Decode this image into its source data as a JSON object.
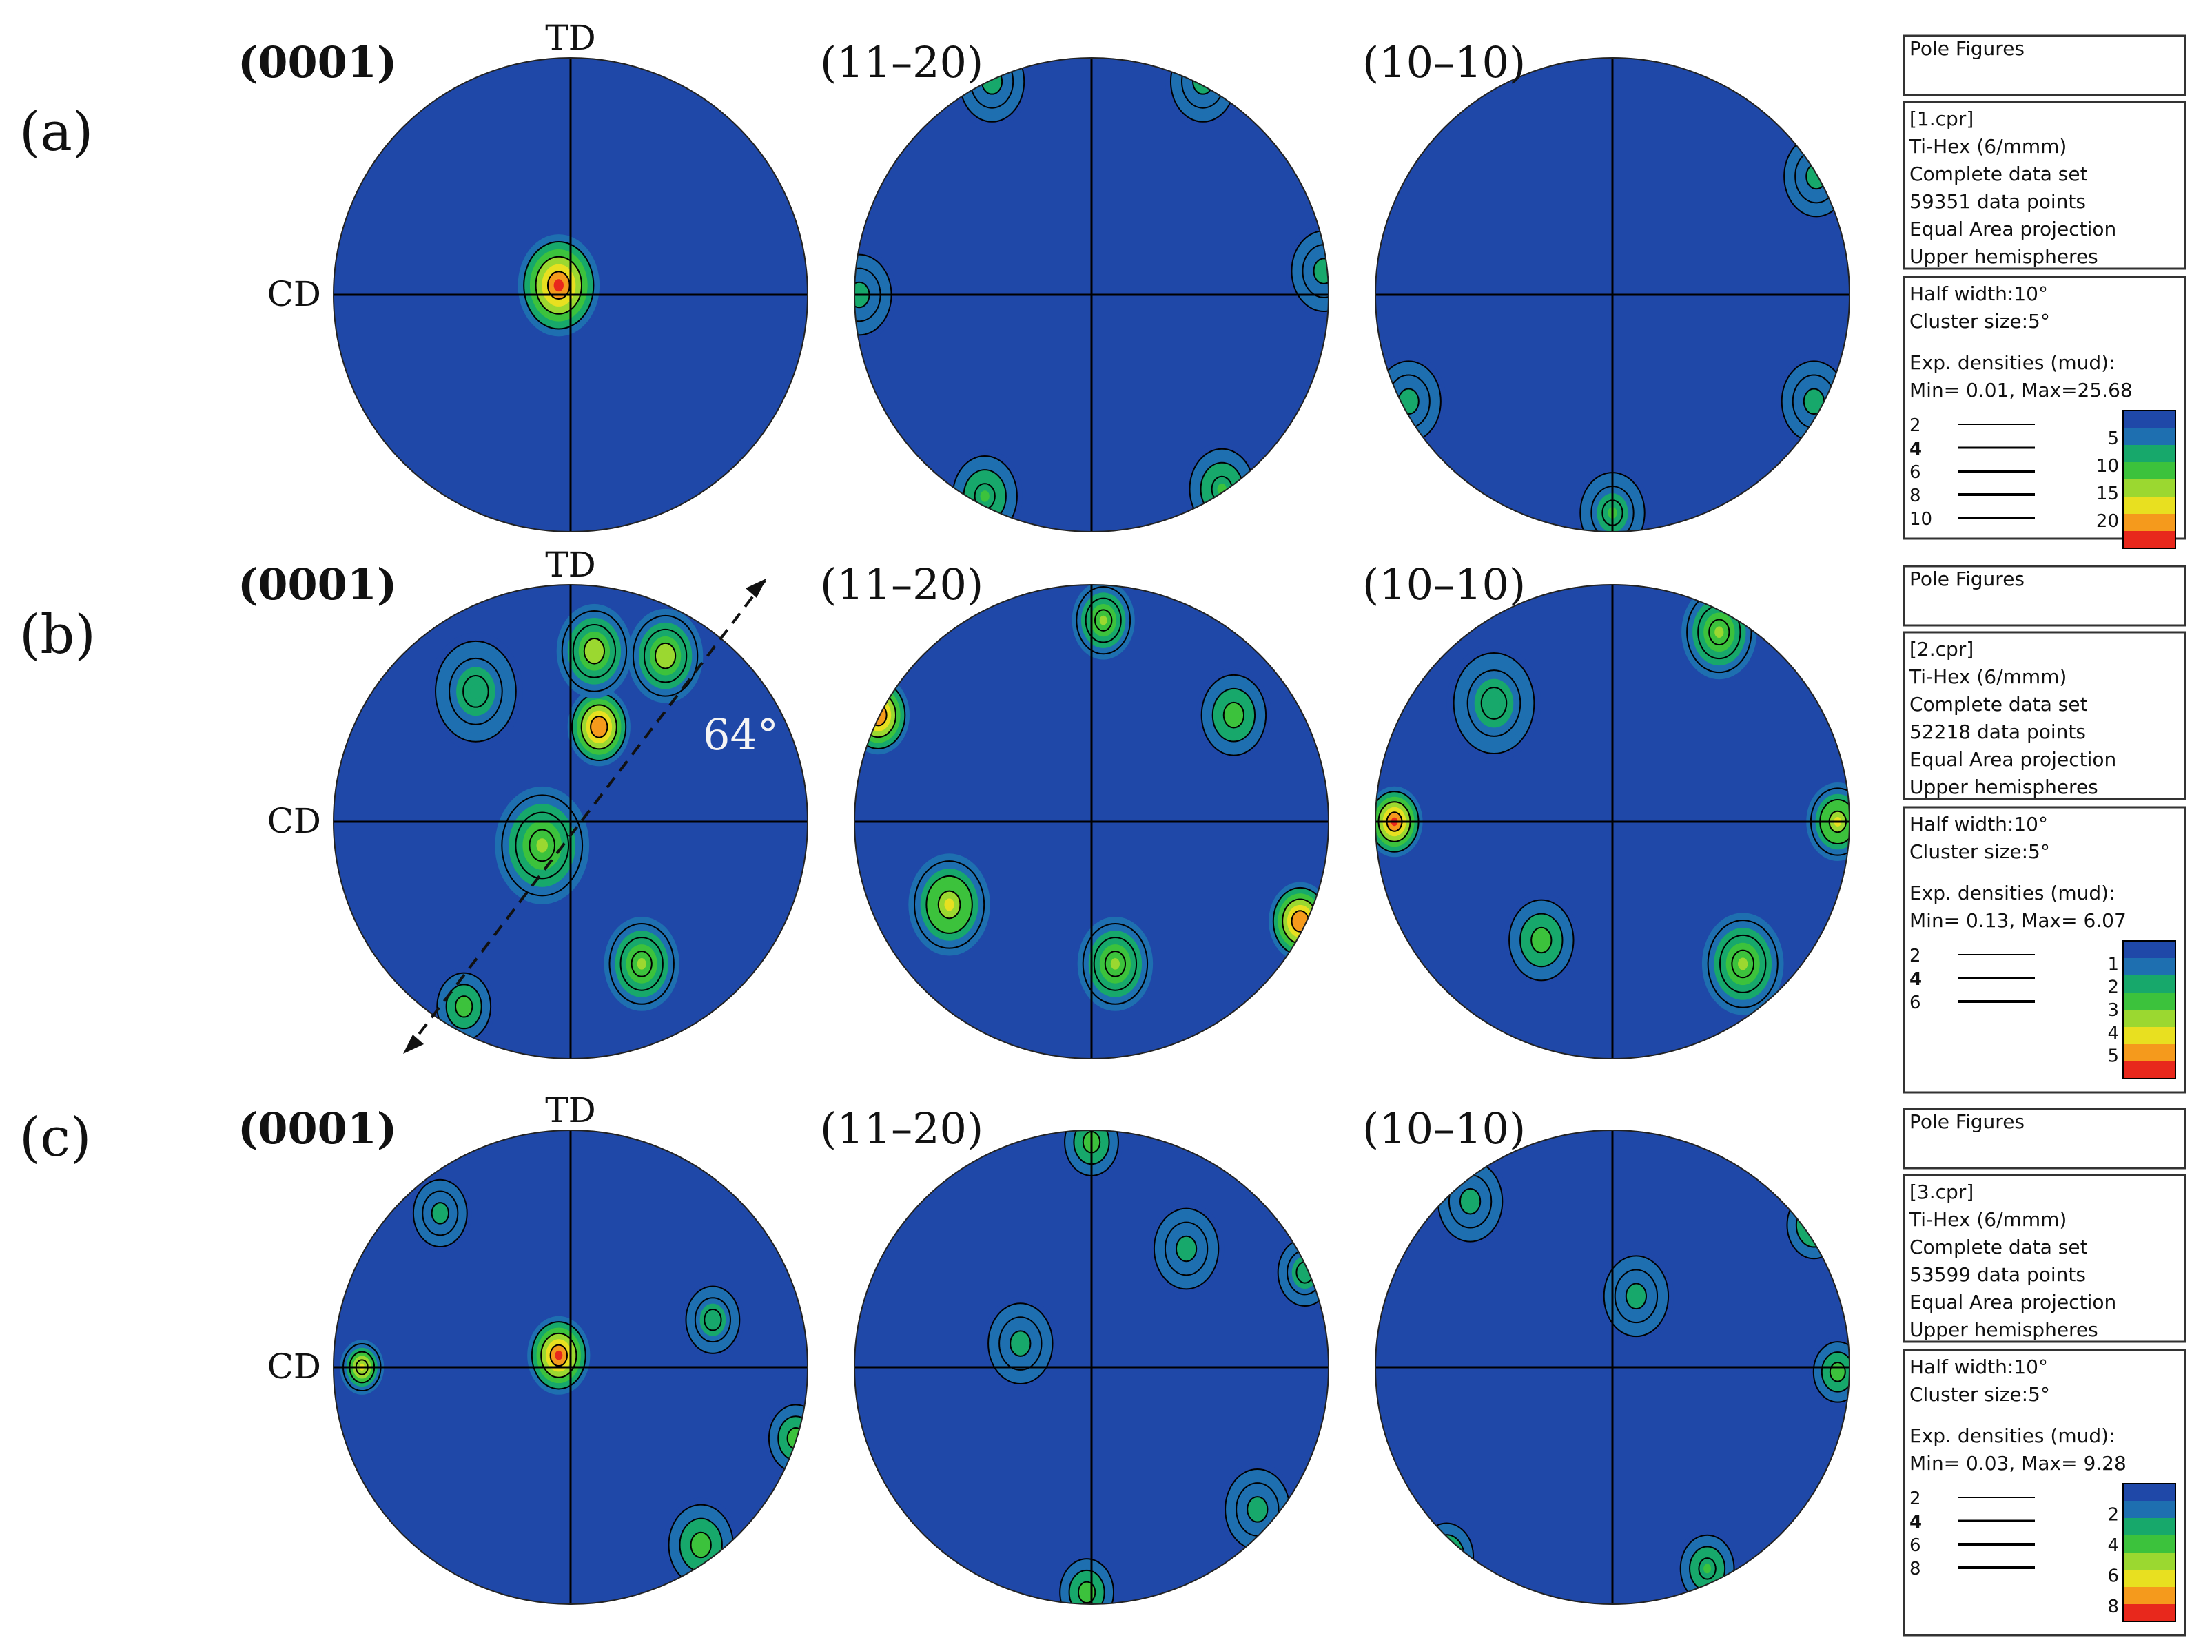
{
  "figure": {
    "axis_labels": {
      "td": "TD",
      "cd": "CD"
    },
    "annotation": {
      "angle_text": "64°"
    },
    "plane_titles": [
      "(0001)",
      "(11–20)",
      "(10–10)"
    ]
  },
  "colors": {
    "background": "#1f48a8",
    "scale": [
      "#1f48a8",
      "#1e6fb0",
      "#17a86b",
      "#3cc23c",
      "#9bd830",
      "#e8e020",
      "#f59a1c",
      "#e8281c"
    ],
    "contour": "#000000",
    "axis": "#000000"
  },
  "chart_data": [
    {
      "type": "heatmap",
      "row_label": "(a)",
      "header": "Pole Figures",
      "info": [
        "[1.cpr]",
        "Ti-Hex (6/mmm)",
        "Complete data set",
        "59351 data points",
        "Equal Area projection",
        "Upper hemispheres"
      ],
      "settings": [
        "Half width:10°",
        "Cluster size:5°"
      ],
      "densities_label": "Exp. densities (mud):",
      "range_text": "Min= 0.01, Max=25.68",
      "min": 0.01,
      "max": 25.68,
      "contour_levels": [
        "2",
        "4",
        "6",
        "8",
        "10"
      ],
      "colorbar_ticks": [
        "5",
        "10",
        "15",
        "20"
      ],
      "colorbar_max": 25,
      "pole_figures": [
        {
          "plane": "(0001)",
          "peaks": [
            {
              "x": -0.05,
              "y": 0.04,
              "value": 25.7,
              "width": 0.13
            }
          ]
        },
        {
          "plane": "(11–20)",
          "peaks": [
            {
              "x": -0.42,
              "y": 0.9,
              "value": 7,
              "width": 0.12
            },
            {
              "x": 0.47,
              "y": 0.9,
              "value": 7,
              "width": 0.12
            },
            {
              "x": -0.98,
              "y": 0.0,
              "value": 7,
              "width": 0.12
            },
            {
              "x": 0.98,
              "y": 0.1,
              "value": 7,
              "width": 0.12
            },
            {
              "x": -0.45,
              "y": -0.85,
              "value": 10,
              "width": 0.12
            },
            {
              "x": 0.55,
              "y": -0.82,
              "value": 10,
              "width": 0.12
            }
          ]
        },
        {
          "plane": "(10–10)",
          "peaks": [
            {
              "x": 0.86,
              "y": 0.5,
              "value": 7,
              "width": 0.12
            },
            {
              "x": 0.0,
              "y": -0.92,
              "value": 9,
              "width": 0.12
            },
            {
              "x": 0.85,
              "y": -0.45,
              "value": 7,
              "width": 0.12
            },
            {
              "x": -0.86,
              "y": -0.45,
              "value": 7,
              "width": 0.12
            }
          ]
        }
      ]
    },
    {
      "type": "heatmap",
      "row_label": "(b)",
      "header": "Pole Figures",
      "info": [
        "[2.cpr]",
        "Ti-Hex (6/mmm)",
        "Complete data set",
        "52218 data points",
        "Equal Area projection",
        "Upper hemispheres"
      ],
      "settings": [
        "Half width:10°",
        "Cluster size:5°"
      ],
      "densities_label": "Exp. densities (mud):",
      "range_text": "Min= 0.13, Max= 6.07",
      "min": 0.13,
      "max": 6.07,
      "contour_levels": [
        "2",
        "4",
        "6"
      ],
      "colorbar_ticks": [
        "1",
        "2",
        "3",
        "4",
        "5"
      ],
      "colorbar_max": 6,
      "pole_figures": [
        {
          "plane": "(0001)",
          "peaks": [
            {
              "x": 0.12,
              "y": 0.4,
              "value": 5.5,
              "width": 0.1
            },
            {
              "x": 0.1,
              "y": 0.72,
              "value": 3.5,
              "width": 0.12
            },
            {
              "x": 0.4,
              "y": 0.7,
              "value": 3.5,
              "width": 0.12
            },
            {
              "x": -0.12,
              "y": -0.1,
              "value": 3,
              "width": 0.15
            },
            {
              "x": 0.3,
              "y": -0.6,
              "value": 3,
              "width": 0.12
            },
            {
              "x": -0.45,
              "y": -0.78,
              "value": 2.5,
              "width": 0.1
            },
            {
              "x": -0.4,
              "y": 0.55,
              "value": 2,
              "width": 0.15
            }
          ]
        },
        {
          "plane": "(11–20)",
          "peaks": [
            {
              "x": -0.9,
              "y": 0.45,
              "value": 5.5,
              "width": 0.1
            },
            {
              "x": 0.88,
              "y": -0.42,
              "value": 5.5,
              "width": 0.1
            },
            {
              "x": -0.6,
              "y": -0.35,
              "value": 4,
              "width": 0.13
            },
            {
              "x": 0.1,
              "y": -0.6,
              "value": 3,
              "width": 0.12
            },
            {
              "x": 0.05,
              "y": 0.85,
              "value": 3,
              "width": 0.1
            },
            {
              "x": 0.6,
              "y": 0.45,
              "value": 2.5,
              "width": 0.12
            }
          ]
        },
        {
          "plane": "(10–10)",
          "peaks": [
            {
              "x": -0.92,
              "y": 0.0,
              "value": 6,
              "width": 0.09
            },
            {
              "x": 0.95,
              "y": 0.0,
              "value": 4,
              "width": 0.1
            },
            {
              "x": 0.55,
              "y": -0.6,
              "value": 3,
              "width": 0.13
            },
            {
              "x": 0.45,
              "y": 0.8,
              "value": 3,
              "width": 0.12
            },
            {
              "x": -0.3,
              "y": -0.5,
              "value": 2.5,
              "width": 0.12
            },
            {
              "x": -0.5,
              "y": 0.5,
              "value": 2,
              "width": 0.15
            }
          ]
        }
      ]
    },
    {
      "type": "heatmap",
      "row_label": "(c)",
      "header": "Pole Figures",
      "info": [
        "[3.cpr]",
        "Ti-Hex (6/mmm)",
        "Complete data set",
        "53599 data points",
        "Equal Area projection",
        "Upper hemispheres"
      ],
      "settings": [
        "Half width:10°",
        "Cluster size:5°"
      ],
      "densities_label": "Exp. densities (mud):",
      "range_text": "Min= 0.03, Max= 9.28",
      "min": 0.03,
      "max": 9.28,
      "contour_levels": [
        "2",
        "4",
        "6",
        "8"
      ],
      "colorbar_ticks": [
        "2",
        "4",
        "6",
        "8"
      ],
      "colorbar_max": 9,
      "pole_figures": [
        {
          "plane": "(0001)",
          "peaks": [
            {
              "x": -0.05,
              "y": 0.05,
              "value": 9.3,
              "width": 0.1
            },
            {
              "x": -0.88,
              "y": 0.0,
              "value": 6.5,
              "width": 0.07
            },
            {
              "x": 0.55,
              "y": -0.75,
              "value": 4,
              "width": 0.12
            },
            {
              "x": 0.95,
              "y": -0.3,
              "value": 4,
              "width": 0.1
            },
            {
              "x": 0.6,
              "y": 0.2,
              "value": 3,
              "width": 0.1
            },
            {
              "x": -0.55,
              "y": 0.65,
              "value": 2.5,
              "width": 0.1
            }
          ]
        },
        {
          "plane": "(11–20)",
          "peaks": [
            {
              "x": 0.0,
              "y": 0.95,
              "value": 4,
              "width": 0.1
            },
            {
              "x": -0.02,
              "y": -0.95,
              "value": 4,
              "width": 0.1
            },
            {
              "x": 0.9,
              "y": 0.4,
              "value": 3,
              "width": 0.1
            },
            {
              "x": -0.3,
              "y": 0.1,
              "value": 2.5,
              "width": 0.12
            },
            {
              "x": 0.4,
              "y": 0.5,
              "value": 2.5,
              "width": 0.12
            },
            {
              "x": 0.7,
              "y": -0.6,
              "value": 2.5,
              "width": 0.12
            }
          ]
        },
        {
          "plane": "(10–10)",
          "peaks": [
            {
              "x": 0.85,
              "y": 0.6,
              "value": 4,
              "width": 0.1
            },
            {
              "x": 0.95,
              "y": -0.02,
              "value": 4,
              "width": 0.09
            },
            {
              "x": -0.7,
              "y": -0.8,
              "value": 4,
              "width": 0.1
            },
            {
              "x": 0.4,
              "y": -0.85,
              "value": 3.5,
              "width": 0.1
            },
            {
              "x": -0.6,
              "y": 0.7,
              "value": 2.5,
              "width": 0.12
            },
            {
              "x": 0.1,
              "y": 0.3,
              "value": 2.5,
              "width": 0.12
            }
          ]
        }
      ]
    }
  ]
}
